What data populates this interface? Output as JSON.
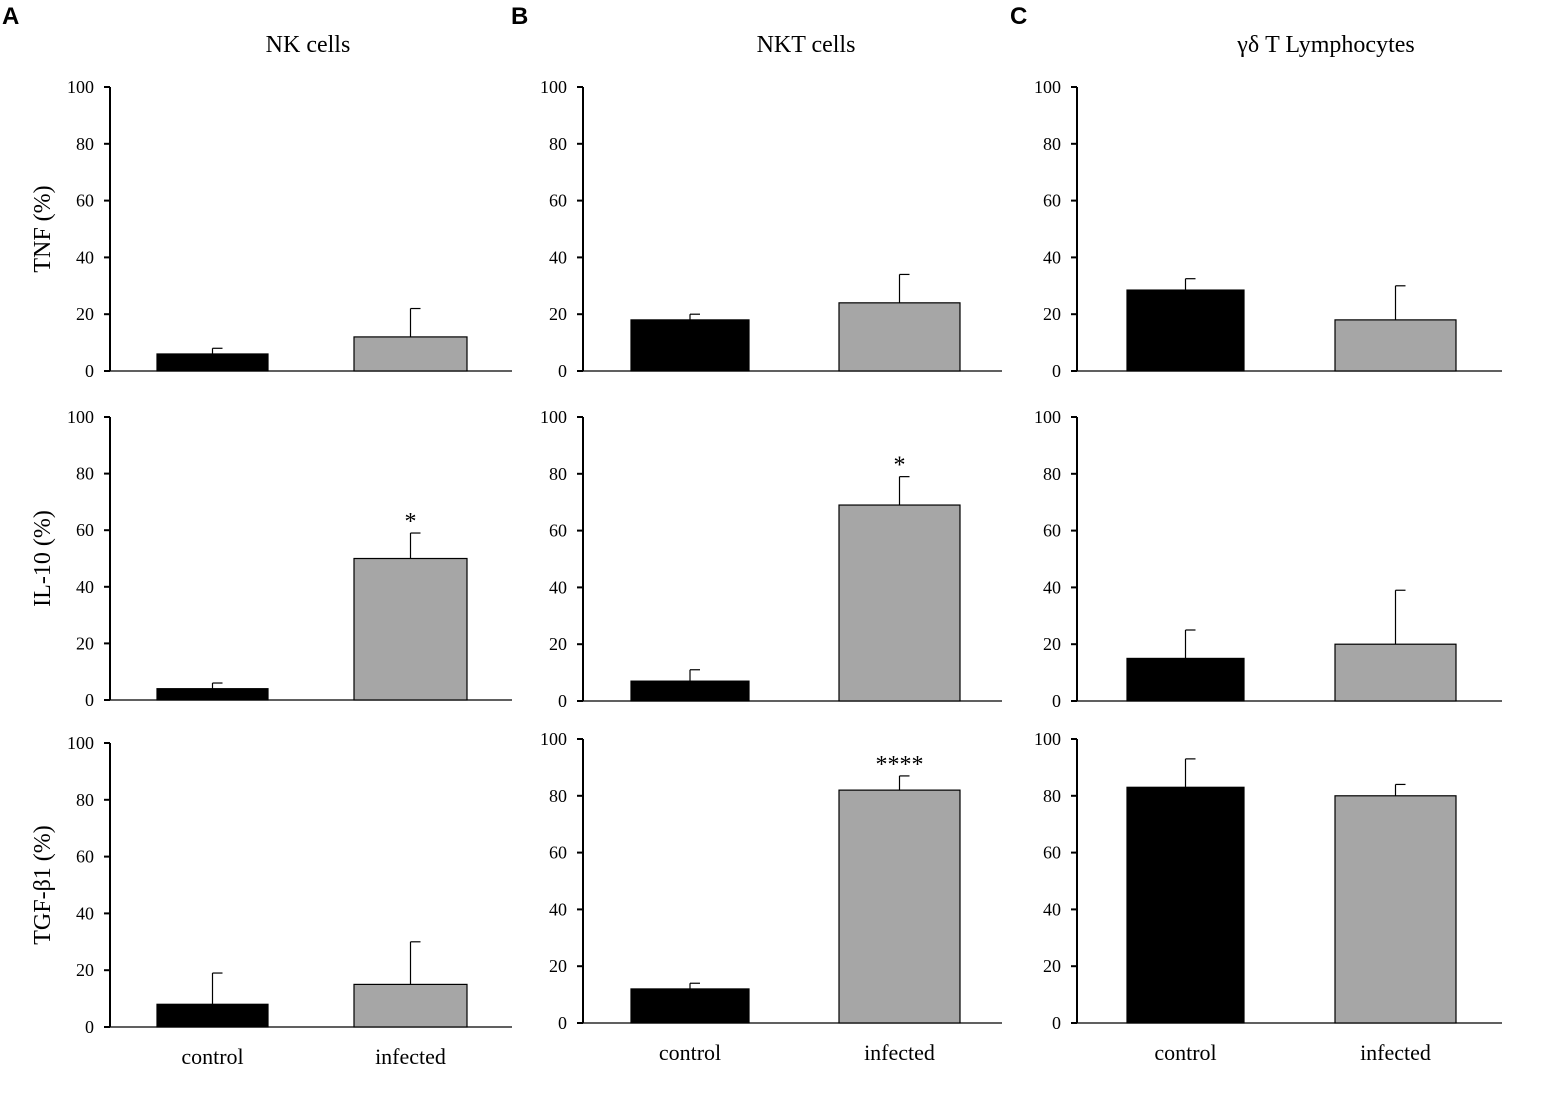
{
  "chart_data": {
    "type": "bar",
    "categories": [
      "control",
      "infected"
    ],
    "colors": {
      "control": "#000000",
      "infected": "#a6a6a6"
    },
    "ylim": [
      0,
      100
    ],
    "yticks": [
      "0",
      "20",
      "40",
      "60",
      "80",
      "100"
    ],
    "row_labels": [
      "TNF (%)",
      "IL-10 (%)",
      "TGF-β1 (%)"
    ],
    "panels": [
      {
        "letter": "A",
        "title": "NK cells",
        "rows": [
          {
            "values": [
              6,
              12
            ],
            "errors": [
              2,
              10
            ],
            "significance": [
              "",
              ""
            ]
          },
          {
            "values": [
              4,
              50
            ],
            "errors": [
              2,
              9
            ],
            "significance": [
              "",
              "*"
            ]
          },
          {
            "values": [
              8,
              15
            ],
            "errors": [
              11,
              15
            ],
            "significance": [
              "",
              ""
            ]
          }
        ]
      },
      {
        "letter": "B",
        "title": "NKT cells",
        "rows": [
          {
            "values": [
              18,
              24
            ],
            "errors": [
              2,
              10
            ],
            "significance": [
              "",
              ""
            ]
          },
          {
            "values": [
              7,
              69
            ],
            "errors": [
              4,
              10
            ],
            "significance": [
              "",
              "*"
            ]
          },
          {
            "values": [
              12,
              82
            ],
            "errors": [
              2,
              5
            ],
            "significance": [
              "",
              "****"
            ]
          }
        ]
      },
      {
        "letter": "C",
        "title": "γδ T Lymphocytes",
        "rows": [
          {
            "values": [
              28.5,
              18
            ],
            "errors": [
              4,
              12
            ],
            "significance": [
              "",
              ""
            ]
          },
          {
            "values": [
              15,
              20
            ],
            "errors": [
              10,
              19
            ],
            "significance": [
              "",
              ""
            ]
          },
          {
            "values": [
              83,
              80
            ],
            "errors": [
              10,
              4
            ],
            "significance": [
              "",
              ""
            ]
          }
        ]
      }
    ]
  }
}
